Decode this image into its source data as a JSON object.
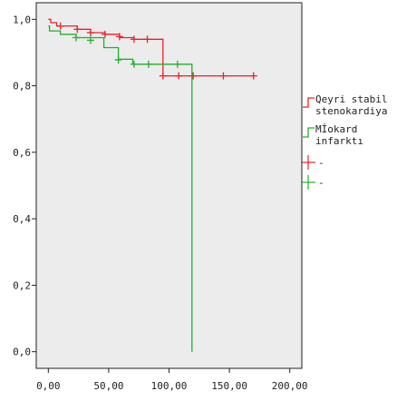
{
  "chart_data": {
    "type": "line",
    "title": "",
    "xlabel": "",
    "ylabel": "",
    "xlim": [
      -10,
      210
    ],
    "ylim": [
      -0.05,
      1.05
    ],
    "x_ticks": [
      0,
      50,
      100,
      150,
      200
    ],
    "x_tick_labels": [
      "0,00",
      "50,00",
      "100,00",
      "150,00",
      "200,00"
    ],
    "y_ticks": [
      0.0,
      0.2,
      0.4,
      0.6,
      0.8,
      1.0
    ],
    "y_tick_labels": [
      "0,0",
      "0,2",
      "0,4",
      "0,6",
      "0,8",
      "1,0"
    ],
    "grid": false,
    "legend_position": "right",
    "series": [
      {
        "name": "Qeyri stabil stenokardiya",
        "color": "#e8232a",
        "step": [
          [
            0,
            1.0
          ],
          [
            2,
            1.0
          ],
          [
            2,
            0.99
          ],
          [
            7,
            0.99
          ],
          [
            7,
            0.98
          ],
          [
            24,
            0.98
          ],
          [
            24,
            0.97
          ],
          [
            35,
            0.97
          ],
          [
            35,
            0.96
          ],
          [
            47,
            0.96
          ],
          [
            47,
            0.955
          ],
          [
            59,
            0.955
          ],
          [
            59,
            0.945
          ],
          [
            71,
            0.945
          ],
          [
            71,
            0.94
          ],
          [
            95,
            0.94
          ],
          [
            95,
            0.83
          ],
          [
            170,
            0.83
          ]
        ],
        "censored": [
          [
            10,
            0.98
          ],
          [
            24,
            0.97
          ],
          [
            35,
            0.96
          ],
          [
            47,
            0.955
          ],
          [
            59,
            0.948
          ],
          [
            71,
            0.94
          ],
          [
            82,
            0.94
          ],
          [
            95,
            0.83
          ],
          [
            108,
            0.83
          ],
          [
            120,
            0.83
          ],
          [
            145,
            0.83
          ],
          [
            170,
            0.83
          ]
        ]
      },
      {
        "name": "Mİokard infarktı",
        "color": "#21b02a",
        "step": [
          [
            0,
            0.98
          ],
          [
            1,
            0.98
          ],
          [
            1,
            0.965
          ],
          [
            10,
            0.965
          ],
          [
            10,
            0.955
          ],
          [
            23,
            0.955
          ],
          [
            23,
            0.945
          ],
          [
            46,
            0.945
          ],
          [
            46,
            0.915
          ],
          [
            58,
            0.915
          ],
          [
            58,
            0.88
          ],
          [
            70,
            0.88
          ],
          [
            70,
            0.865
          ],
          [
            119,
            0.865
          ],
          [
            119,
            0.0
          ]
        ],
        "censored": [
          [
            23,
            0.945
          ],
          [
            35,
            0.937
          ],
          [
            58,
            0.878
          ],
          [
            71,
            0.865
          ],
          [
            83,
            0.865
          ],
          [
            107,
            0.865
          ]
        ]
      },
      {
        "name": "-",
        "color": "#e8232a",
        "marker_only": true
      },
      {
        "name": "-",
        "color": "#21b02a",
        "marker_only": true
      }
    ]
  },
  "style": {
    "plot_background": "#ececec",
    "axis_color": "#222222"
  }
}
